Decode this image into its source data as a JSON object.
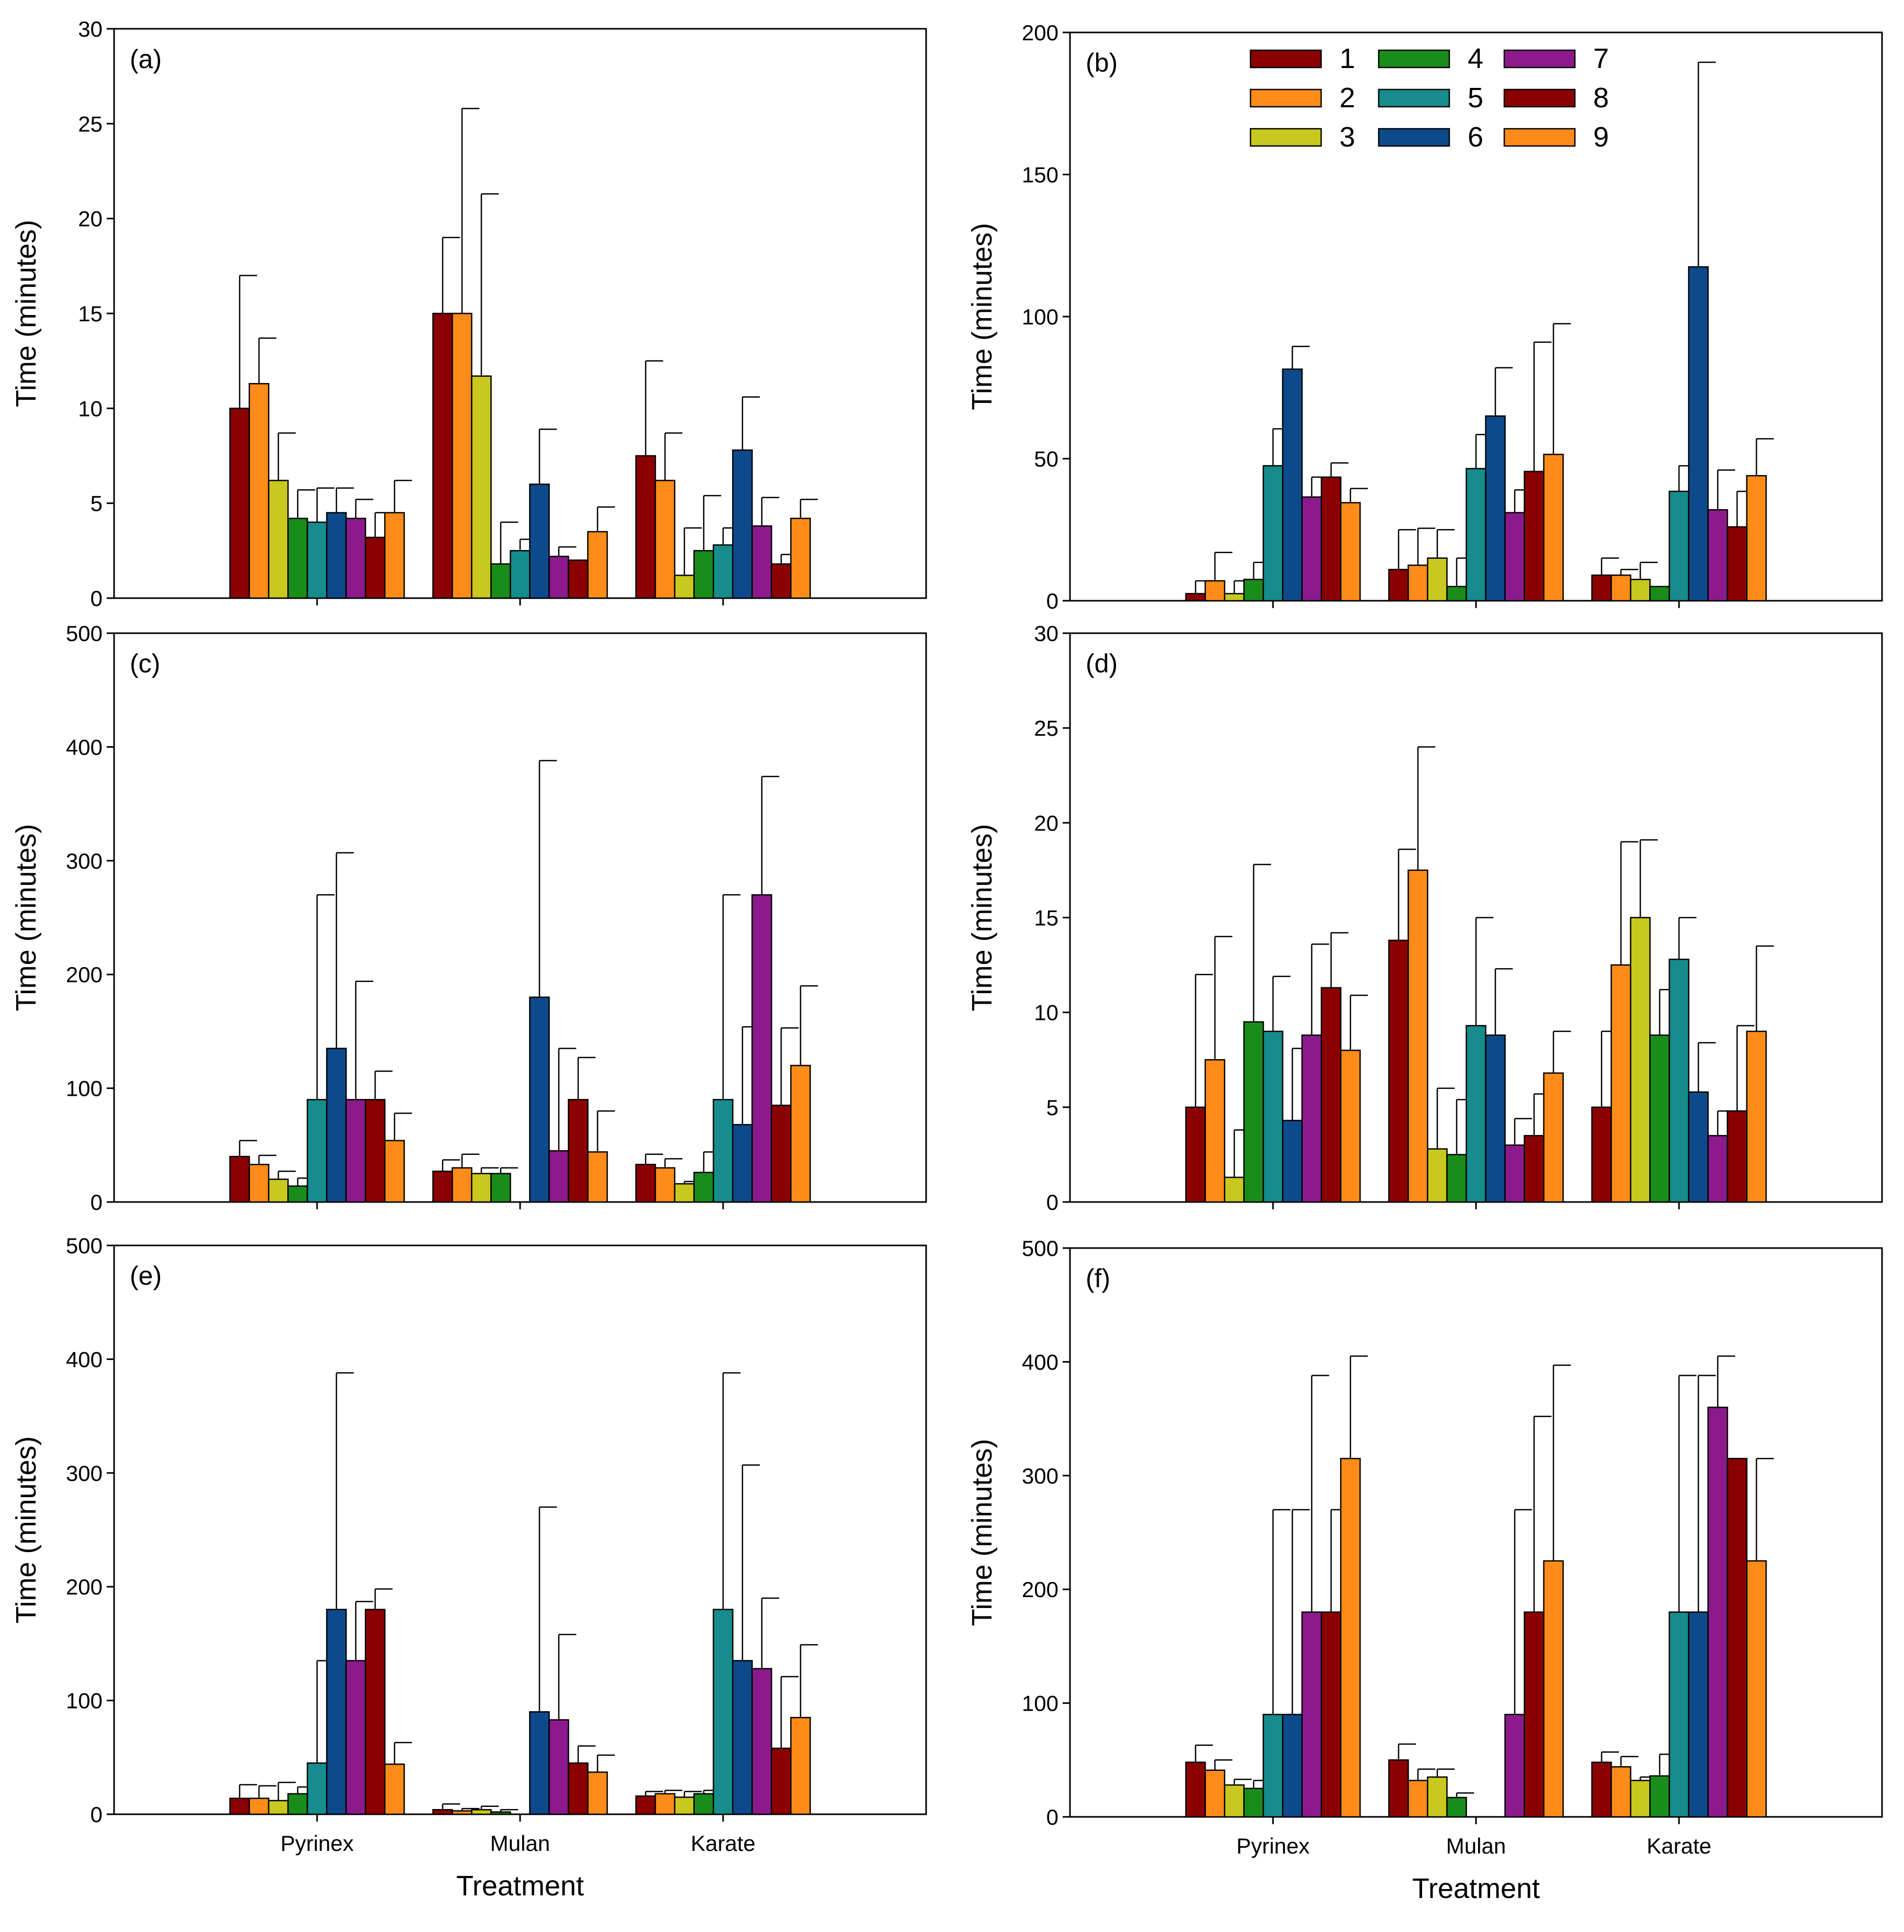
{
  "figure": {
    "xlabel": "Treatment",
    "ylabel": "Time (minutes)"
  },
  "legend": {
    "entries": [
      "1",
      "2",
      "3",
      "4",
      "5",
      "6",
      "7",
      "8",
      "9"
    ]
  },
  "series_colors": [
    "#8b0000",
    "#ff8c1a",
    "#c8c81e",
    "#1a8c1a",
    "#168c8c",
    "#0d4a8c",
    "#8c1a8c",
    "#8b0000",
    "#ff8c1a"
  ],
  "chart_data": [
    {
      "type": "bar",
      "panel": "(a)",
      "categories": [
        "Pyrinex",
        "Mulan",
        "Karate"
      ],
      "ylim": [
        0,
        30
      ],
      "yticks": [
        0,
        5,
        10,
        15,
        20,
        25,
        30
      ],
      "ylabel": "Time (minutes)",
      "xlabel": "",
      "show_xticklabels": false,
      "series": [
        {
          "name": "1",
          "values": [
            10,
            15,
            7.5
          ],
          "errors": [
            7,
            4,
            5
          ]
        },
        {
          "name": "2",
          "values": [
            11.3,
            15,
            6.2
          ],
          "errors": [
            2.4,
            10.8,
            2.5
          ]
        },
        {
          "name": "3",
          "values": [
            6.2,
            11.7,
            1.2
          ],
          "errors": [
            2.5,
            9.6,
            2.5
          ]
        },
        {
          "name": "4",
          "values": [
            4.2,
            1.8,
            2.5
          ],
          "errors": [
            1.5,
            2.2,
            2.9
          ]
        },
        {
          "name": "5",
          "values": [
            4,
            2.5,
            2.8
          ],
          "errors": [
            1.8,
            0.6,
            0.9
          ]
        },
        {
          "name": "6",
          "values": [
            4.5,
            6,
            7.8
          ],
          "errors": [
            1.3,
            2.9,
            2.8
          ]
        },
        {
          "name": "7",
          "values": [
            4.2,
            2.2,
            3.8
          ],
          "errors": [
            1,
            0.5,
            1.5
          ]
        },
        {
          "name": "8",
          "values": [
            3.2,
            2,
            1.8
          ],
          "errors": [
            1.3,
            0,
            0.5
          ]
        },
        {
          "name": "9",
          "values": [
            4.5,
            3.5,
            4.2
          ],
          "errors": [
            1.7,
            1.3,
            1
          ]
        }
      ]
    },
    {
      "type": "bar",
      "panel": "(b)",
      "categories": [
        "Pyrinex",
        "Mulan",
        "Karate"
      ],
      "ylim": [
        0,
        200
      ],
      "yticks": [
        0,
        50,
        100,
        150,
        200
      ],
      "ylabel": "Time (minutes)",
      "xlabel": "",
      "show_xticklabels": false,
      "legend": true,
      "series": [
        {
          "name": "1",
          "values": [
            2.5,
            11,
            9
          ],
          "errors": [
            4.5,
            14,
            6
          ]
        },
        {
          "name": "2",
          "values": [
            7,
            12.5,
            9
          ],
          "errors": [
            10,
            13,
            2
          ]
        },
        {
          "name": "3",
          "values": [
            2.5,
            15,
            7.5
          ],
          "errors": [
            4.5,
            10,
            6
          ]
        },
        {
          "name": "4",
          "values": [
            7.5,
            5,
            5
          ],
          "errors": [
            6,
            10,
            0
          ]
        },
        {
          "name": "5",
          "values": [
            47.5,
            46.5,
            38.5
          ],
          "errors": [
            13,
            12,
            9
          ]
        },
        {
          "name": "6",
          "values": [
            81.5,
            65,
            117.5
          ],
          "errors": [
            8,
            17,
            72
          ]
        },
        {
          "name": "7",
          "values": [
            36.5,
            31,
            32
          ],
          "errors": [
            7,
            8,
            14
          ]
        },
        {
          "name": "8",
          "values": [
            43.5,
            45.5,
            26
          ],
          "errors": [
            5,
            45.5,
            12.5
          ]
        },
        {
          "name": "9",
          "values": [
            34.5,
            51.5,
            44
          ],
          "errors": [
            5,
            46,
            13
          ]
        }
      ]
    },
    {
      "type": "bar",
      "panel": "(c)",
      "categories": [
        "Pyrinex",
        "Mulan",
        "Karate"
      ],
      "ylim": [
        0,
        500
      ],
      "yticks": [
        0,
        100,
        200,
        300,
        400,
        500
      ],
      "ylabel": "Time (minutes)",
      "xlabel": "",
      "show_xticklabels": false,
      "series": [
        {
          "name": "1",
          "values": [
            40,
            27,
            33
          ],
          "errors": [
            14,
            10,
            9
          ]
        },
        {
          "name": "2",
          "values": [
            33,
            30,
            30
          ],
          "errors": [
            8,
            12,
            8
          ]
        },
        {
          "name": "3",
          "values": [
            20,
            25,
            16
          ],
          "errors": [
            7,
            5,
            2
          ]
        },
        {
          "name": "4",
          "values": [
            14,
            25,
            26
          ],
          "errors": [
            7,
            5,
            18
          ]
        },
        {
          "name": "5",
          "values": [
            90,
            0,
            90
          ],
          "errors": [
            180,
            0,
            180
          ]
        },
        {
          "name": "6",
          "values": [
            135,
            180,
            68
          ],
          "errors": [
            172,
            208,
            86
          ]
        },
        {
          "name": "7",
          "values": [
            90,
            45,
            270
          ],
          "errors": [
            104,
            90,
            104
          ]
        },
        {
          "name": "8",
          "values": [
            90,
            90,
            85
          ],
          "errors": [
            25,
            37,
            68
          ]
        },
        {
          "name": "9",
          "values": [
            54,
            44,
            120
          ],
          "errors": [
            24,
            36,
            70
          ]
        }
      ]
    },
    {
      "type": "bar",
      "panel": "(d)",
      "categories": [
        "Pyrinex",
        "Mulan",
        "Karate"
      ],
      "ylim": [
        0,
        30
      ],
      "yticks": [
        0,
        5,
        10,
        15,
        20,
        25,
        30
      ],
      "ylabel": "Time (minutes)",
      "xlabel": "",
      "show_xticklabels": false,
      "series": [
        {
          "name": "1",
          "values": [
            5,
            13.8,
            5
          ],
          "errors": [
            7,
            4.8,
            4
          ]
        },
        {
          "name": "2",
          "values": [
            7.5,
            17.5,
            12.5
          ],
          "errors": [
            6.5,
            6.5,
            6.5
          ]
        },
        {
          "name": "3",
          "values": [
            1.3,
            2.8,
            15
          ],
          "errors": [
            2.5,
            3.2,
            4.1
          ]
        },
        {
          "name": "4",
          "values": [
            9.5,
            2.5,
            8.8
          ],
          "errors": [
            8.3,
            2.9,
            2.4
          ]
        },
        {
          "name": "5",
          "values": [
            9,
            9.3,
            12.8
          ],
          "errors": [
            2.9,
            5.7,
            2.2
          ]
        },
        {
          "name": "6",
          "values": [
            4.3,
            8.8,
            5.8
          ],
          "errors": [
            3.8,
            3.5,
            2.6
          ]
        },
        {
          "name": "7",
          "values": [
            8.8,
            3,
            3.5
          ],
          "errors": [
            4.8,
            1.4,
            1.3
          ]
        },
        {
          "name": "8",
          "values": [
            11.3,
            3.5,
            4.8
          ],
          "errors": [
            2.9,
            2.2,
            4.5
          ]
        },
        {
          "name": "9",
          "values": [
            8,
            6.8,
            9
          ],
          "errors": [
            2.9,
            2.2,
            4.5
          ]
        }
      ]
    },
    {
      "type": "bar",
      "panel": "(e)",
      "categories": [
        "Pyrinex",
        "Mulan",
        "Karate"
      ],
      "ylim": [
        0,
        500
      ],
      "yticks": [
        0,
        100,
        200,
        300,
        400,
        500
      ],
      "ylabel": "Time (minutes)",
      "xlabel": "Treatment",
      "show_xticklabels": true,
      "series": [
        {
          "name": "1",
          "values": [
            14,
            4,
            16
          ],
          "errors": [
            12,
            5,
            4
          ]
        },
        {
          "name": "2",
          "values": [
            14,
            3,
            18
          ],
          "errors": [
            11,
            2,
            3
          ]
        },
        {
          "name": "3",
          "values": [
            12,
            4,
            15
          ],
          "errors": [
            16,
            3,
            5
          ]
        },
        {
          "name": "4",
          "values": [
            18,
            2,
            18
          ],
          "errors": [
            6,
            2,
            3
          ]
        },
        {
          "name": "5",
          "values": [
            45,
            0,
            180
          ],
          "errors": [
            90,
            0,
            208
          ]
        },
        {
          "name": "6",
          "values": [
            180,
            90,
            135
          ],
          "errors": [
            208,
            180,
            172
          ]
        },
        {
          "name": "7",
          "values": [
            135,
            83,
            128
          ],
          "errors": [
            52,
            75,
            62
          ]
        },
        {
          "name": "8",
          "values": [
            180,
            45,
            58
          ],
          "errors": [
            18,
            15,
            63
          ]
        },
        {
          "name": "9",
          "values": [
            44,
            37,
            85
          ],
          "errors": [
            19,
            15,
            64
          ]
        }
      ]
    },
    {
      "type": "bar",
      "panel": "(f)",
      "categories": [
        "Pyrinex",
        "Mulan",
        "Karate"
      ],
      "ylim": [
        0,
        500
      ],
      "yticks": [
        0,
        100,
        200,
        300,
        400,
        500
      ],
      "ylabel": "Time (minutes)",
      "xlabel": "Treatment",
      "show_xticklabels": true,
      "series": [
        {
          "name": "1",
          "values": [
            48,
            50,
            48
          ],
          "errors": [
            15,
            14,
            9
          ]
        },
        {
          "name": "2",
          "values": [
            41,
            32,
            44
          ],
          "errors": [
            9,
            10,
            9
          ]
        },
        {
          "name": "3",
          "values": [
            28,
            35,
            32
          ],
          "errors": [
            5,
            7,
            3
          ]
        },
        {
          "name": "4",
          "values": [
            25,
            17,
            36
          ],
          "errors": [
            7,
            4,
            19
          ]
        },
        {
          "name": "5",
          "values": [
            90,
            0,
            180
          ],
          "errors": [
            180,
            0,
            208
          ]
        },
        {
          "name": "6",
          "values": [
            90,
            0,
            180
          ],
          "errors": [
            180,
            0,
            208
          ]
        },
        {
          "name": "7",
          "values": [
            180,
            90,
            360
          ],
          "errors": [
            208,
            180,
            45
          ]
        },
        {
          "name": "8",
          "values": [
            180,
            180,
            315
          ],
          "errors": [
            90,
            172,
            0
          ]
        },
        {
          "name": "9",
          "values": [
            315,
            225,
            225
          ],
          "errors": [
            90,
            172,
            90
          ]
        }
      ]
    }
  ]
}
